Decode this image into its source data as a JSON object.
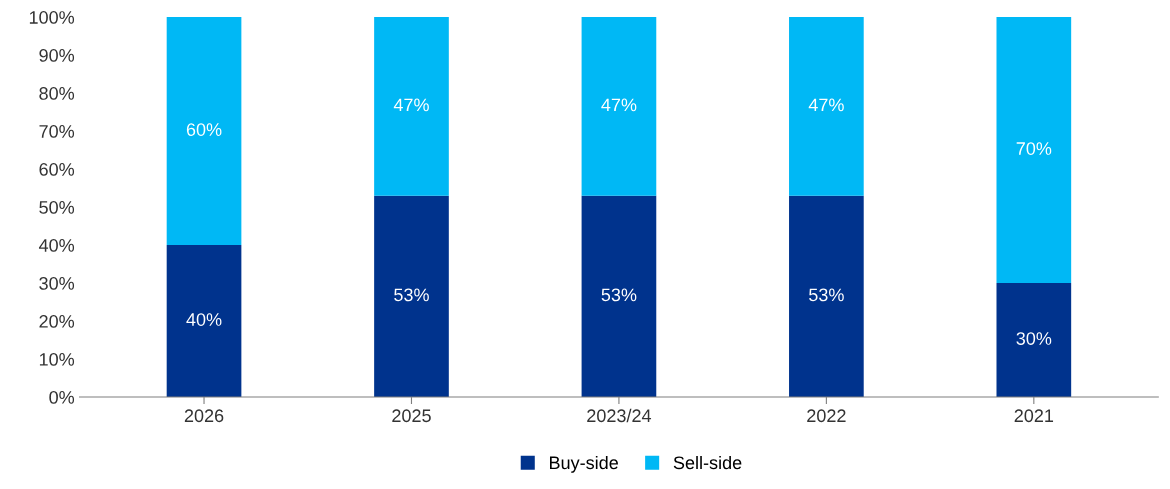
{
  "chart_data": {
    "type": "bar",
    "stacked": true,
    "categories": [
      "2026",
      "2025",
      "2023/24",
      "2022",
      "2021"
    ],
    "series": [
      {
        "name": "Buy-side",
        "color": "#00338d",
        "values": [
          40,
          53,
          53,
          53,
          30
        ],
        "value_labels": [
          "40%",
          "53%",
          "53%",
          "53%",
          "30%"
        ]
      },
      {
        "name": "Sell-side",
        "color": "#00b8f5",
        "values": [
          60,
          47,
          47,
          47,
          70
        ],
        "value_labels": [
          "60%",
          "47%",
          "47%",
          "47%",
          "70%"
        ]
      }
    ],
    "ylim": [
      0,
      100
    ],
    "yticks": [
      {
        "value": 0,
        "label": "0%"
      },
      {
        "value": 10,
        "label": "10%"
      },
      {
        "value": 20,
        "label": "20%"
      },
      {
        "value": 30,
        "label": "30%"
      },
      {
        "value": 40,
        "label": "40%"
      },
      {
        "value": 50,
        "label": "50%"
      },
      {
        "value": 60,
        "label": "60%"
      },
      {
        "value": 70,
        "label": "70%"
      },
      {
        "value": 80,
        "label": "80%"
      },
      {
        "value": 90,
        "label": "90%"
      },
      {
        "value": 100,
        "label": "100%"
      }
    ],
    "grid": false,
    "legend": "bottom"
  }
}
